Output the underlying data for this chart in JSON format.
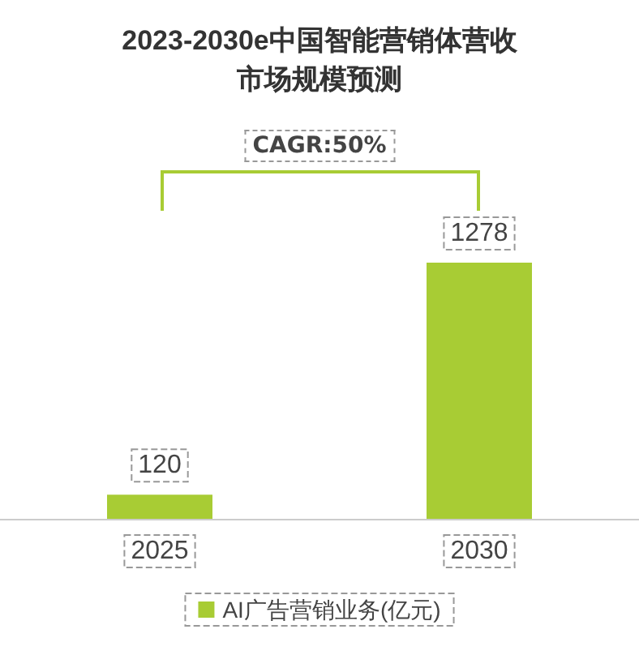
{
  "chart_data": {
    "type": "bar",
    "title": "2023-2030e中国智能营销体营收市场规模预测",
    "categories": [
      "2025",
      "2030"
    ],
    "series": [
      {
        "name": "AI广告营销业务(亿元)",
        "color": "#a8cc34",
        "values": [
          120,
          1278
        ]
      }
    ],
    "data_labels": true,
    "legend": "bottom",
    "annotations": [
      "CAGR:50%"
    ]
  }
}
